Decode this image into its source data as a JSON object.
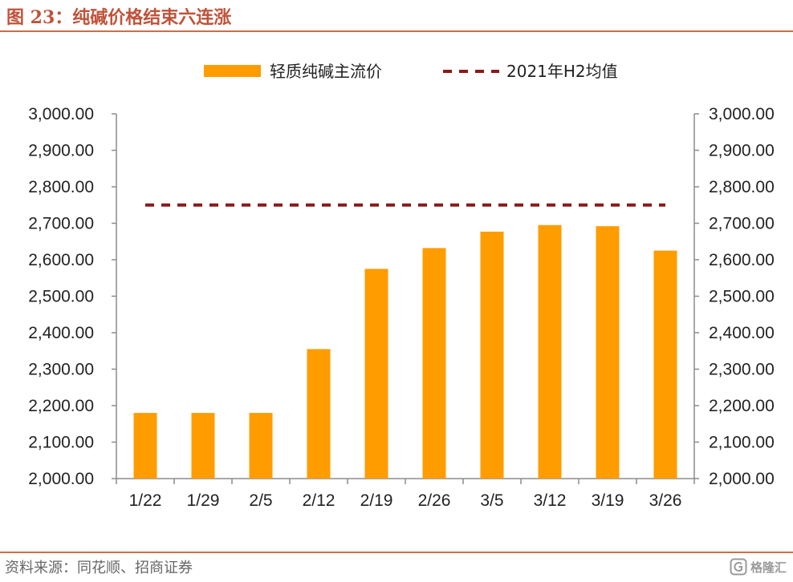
{
  "header": {
    "title": "图 23：纯碱价格结束六连涨"
  },
  "footer": {
    "source": "资料来源：同花顺、招商证券",
    "watermark_text": "格隆汇",
    "watermark_icon": "gelonghui-logo-icon"
  },
  "colors": {
    "bar": "#ff9c00",
    "reference_line": "#8b1a1a",
    "accent": "#c0533a",
    "rule": "#c8704a"
  },
  "chart_data": {
    "type": "bar",
    "title": "",
    "xlabel": "",
    "ylabel": "",
    "categories": [
      "1/22",
      "1/29",
      "2/5",
      "2/12",
      "2/19",
      "2/26",
      "3/5",
      "3/12",
      "3/19",
      "3/26"
    ],
    "series": [
      {
        "name": "轻质纯碱主流价",
        "type": "bar",
        "values": [
          2180,
          2180,
          2180,
          2355,
          2575,
          2632,
          2677,
          2695,
          2692,
          2625
        ]
      },
      {
        "name": "2021年H2均值",
        "type": "line",
        "style": "dashed",
        "values": [
          2750,
          2750,
          2750,
          2750,
          2750,
          2750,
          2750,
          2750,
          2750,
          2750
        ]
      }
    ],
    "ylim": [
      2000,
      3000
    ],
    "yticks": [
      "2,000.00",
      "2,100.00",
      "2,200.00",
      "2,300.00",
      "2,400.00",
      "2,500.00",
      "2,600.00",
      "2,700.00",
      "2,800.00",
      "2,900.00",
      "3,000.00"
    ],
    "secondary_yticks": [
      "2,000.00",
      "2,100.00",
      "2,200.00",
      "2,300.00",
      "2,400.00",
      "2,500.00",
      "2,600.00",
      "2,700.00",
      "2,800.00",
      "2,900.00",
      "3,000.00"
    ],
    "grid": false,
    "legend_position": "top-center"
  }
}
